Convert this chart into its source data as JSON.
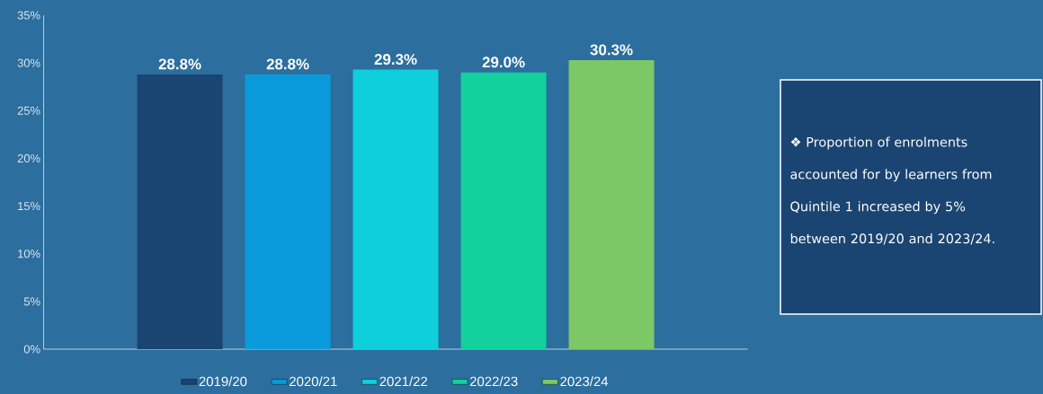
{
  "chart_data": {
    "type": "bar",
    "categories": [
      null
    ],
    "series": [
      {
        "name": "2019/20",
        "color": "#1a4472",
        "values": [
          28.8
        ],
        "value_labels": [
          "28.8%"
        ]
      },
      {
        "name": "2020/21",
        "color": "#0a9bdc",
        "values": [
          28.8
        ],
        "value_labels": [
          "28.8%"
        ]
      },
      {
        "name": "2021/22",
        "color": "#0dd0dc",
        "values": [
          29.3
        ],
        "value_labels": [
          "29.3%"
        ]
      },
      {
        "name": "2022/23",
        "color": "#12d19c",
        "values": [
          29.0
        ],
        "value_labels": [
          "29.0%"
        ]
      },
      {
        "name": "2023/24",
        "color": "#7dc866",
        "values": [
          30.3
        ],
        "value_labels": [
          "30.3%"
        ]
      }
    ],
    "ylim": [
      0,
      35
    ],
    "yticks": [
      {
        "value": 0,
        "label": "0%"
      },
      {
        "value": 5,
        "label": "5%"
      },
      {
        "value": 10,
        "label": "10%"
      },
      {
        "value": 15,
        "label": "15%"
      },
      {
        "value": 20,
        "label": "20%"
      },
      {
        "value": 25,
        "label": "25%"
      },
      {
        "value": 30,
        "label": "30%"
      },
      {
        "value": 35,
        "label": "35%"
      }
    ],
    "legend": "bottom",
    "annotations": [
      "❖  Proportion of enrolments accounted for by learners from Quintile 1 increased by 5% between 2019/20 and 2023/24."
    ]
  }
}
